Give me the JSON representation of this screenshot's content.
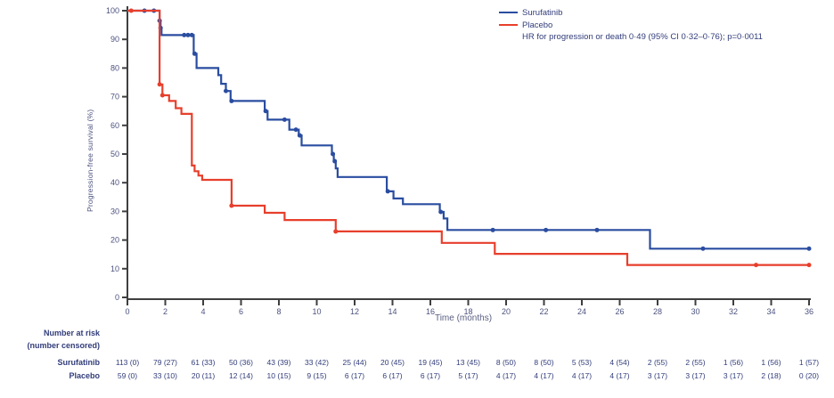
{
  "colors": {
    "surufatinib_blue": "#2a4da0",
    "placebo_red": "#e73f2c",
    "text_navy": "#323d7a",
    "axis_text": "#4c527f",
    "axis_line": "#3f3f3f"
  },
  "chart_data": {
    "type": "line",
    "subtype": "kaplan-meier-step",
    "title": "",
    "xlabel": "Time (months)",
    "ylabel": "Progression-free survival (%)",
    "xlim": [
      0,
      36
    ],
    "ylim": [
      0,
      100
    ],
    "xticks": [
      0,
      2,
      4,
      6,
      8,
      10,
      12,
      14,
      16,
      18,
      20,
      22,
      24,
      26,
      28,
      30,
      32,
      34,
      36
    ],
    "yticks": [
      0,
      10,
      20,
      30,
      40,
      50,
      60,
      70,
      80,
      90,
      100
    ],
    "grid": false,
    "legend_position": "top-right",
    "annotation": "HR for progression or death 0·49 (95% CI 0·32–0·76); p=0·0011",
    "series": [
      {
        "name": "Surufatinib",
        "color": "#2a4da0",
        "steps": [
          [
            0,
            100
          ],
          [
            1.7,
            96.5
          ],
          [
            1.75,
            94
          ],
          [
            1.8,
            91.5
          ],
          [
            3.5,
            85
          ],
          [
            3.65,
            80
          ],
          [
            4.8,
            77.5
          ],
          [
            4.95,
            74.5
          ],
          [
            5.2,
            72
          ],
          [
            5.45,
            68.5
          ],
          [
            7.25,
            65
          ],
          [
            7.4,
            62
          ],
          [
            8.55,
            58.5
          ],
          [
            9.05,
            56.5
          ],
          [
            9.2,
            53
          ],
          [
            10.8,
            50
          ],
          [
            10.9,
            47.5
          ],
          [
            11.0,
            45
          ],
          [
            11.1,
            42
          ],
          [
            13.7,
            37
          ],
          [
            14.05,
            34.5
          ],
          [
            14.55,
            32.5
          ],
          [
            16.5,
            29.8
          ],
          [
            16.7,
            27.5
          ],
          [
            16.9,
            23.5
          ],
          [
            27.6,
            17
          ],
          [
            36,
            17
          ]
        ],
        "censor_marks": [
          [
            0.9,
            100
          ],
          [
            1.4,
            100
          ],
          [
            1.7,
            96.5
          ],
          [
            1.75,
            94
          ],
          [
            3.0,
            91.5
          ],
          [
            3.2,
            91.5
          ],
          [
            3.4,
            91.5
          ],
          [
            3.55,
            85
          ],
          [
            5.2,
            72
          ],
          [
            5.5,
            68.5
          ],
          [
            7.3,
            65
          ],
          [
            8.3,
            62
          ],
          [
            8.9,
            58.5
          ],
          [
            9.1,
            56.5
          ],
          [
            10.85,
            50
          ],
          [
            10.95,
            47.5
          ],
          [
            13.75,
            37
          ],
          [
            16.55,
            29.8
          ],
          [
            19.3,
            23.5
          ],
          [
            22.1,
            23.5
          ],
          [
            24.8,
            23.5
          ],
          [
            30.4,
            17
          ],
          [
            36,
            17
          ]
        ]
      },
      {
        "name": "Placebo",
        "color": "#e73f2c",
        "steps": [
          [
            0,
            100
          ],
          [
            1.7,
            74.3
          ],
          [
            1.85,
            70.5
          ],
          [
            2.2,
            68.5
          ],
          [
            2.55,
            66
          ],
          [
            2.85,
            64
          ],
          [
            3.4,
            46
          ],
          [
            3.55,
            44
          ],
          [
            3.75,
            42.5
          ],
          [
            3.95,
            41
          ],
          [
            5.5,
            32
          ],
          [
            7.25,
            29.5
          ],
          [
            8.3,
            27
          ],
          [
            11,
            23
          ],
          [
            16.6,
            19
          ],
          [
            19.4,
            15.2
          ],
          [
            26.4,
            11.3
          ],
          [
            36,
            11.3
          ]
        ],
        "censor_marks": [
          [
            0.2,
            100
          ],
          [
            1.7,
            74.3
          ],
          [
            1.85,
            70.5
          ],
          [
            5.5,
            32
          ],
          [
            11,
            23
          ],
          [
            33.2,
            11.3
          ],
          [
            36,
            11.3
          ]
        ]
      }
    ]
  },
  "risk_table": {
    "header_line1": "Number at risk",
    "header_line2": "(number censored)",
    "times": [
      0,
      2,
      4,
      6,
      8,
      10,
      12,
      14,
      16,
      18,
      20,
      22,
      24,
      26,
      28,
      30,
      32,
      34,
      36
    ],
    "rows": [
      {
        "label": "Surufatinib",
        "values": [
          "113 (0)",
          "79 (27)",
          "61 (33)",
          "50 (36)",
          "43 (39)",
          "33 (42)",
          "25 (44)",
          "20 (45)",
          "19 (45)",
          "13 (45)",
          "8 (50)",
          "8 (50)",
          "5 (53)",
          "4 (54)",
          "2 (55)",
          "2 (55)",
          "1 (56)",
          "1 (56)",
          "1 (57)"
        ]
      },
      {
        "label": "Placebo",
        "values": [
          "59 (0)",
          "33 (10)",
          "20 (11)",
          "12 (14)",
          "10 (15)",
          "9 (15)",
          "6 (17)",
          "6 (17)",
          "6 (17)",
          "5 (17)",
          "4 (17)",
          "4 (17)",
          "4 (17)",
          "4 (17)",
          "3 (17)",
          "3 (17)",
          "3 (17)",
          "2 (18)",
          "0 (20)"
        ]
      }
    ]
  }
}
